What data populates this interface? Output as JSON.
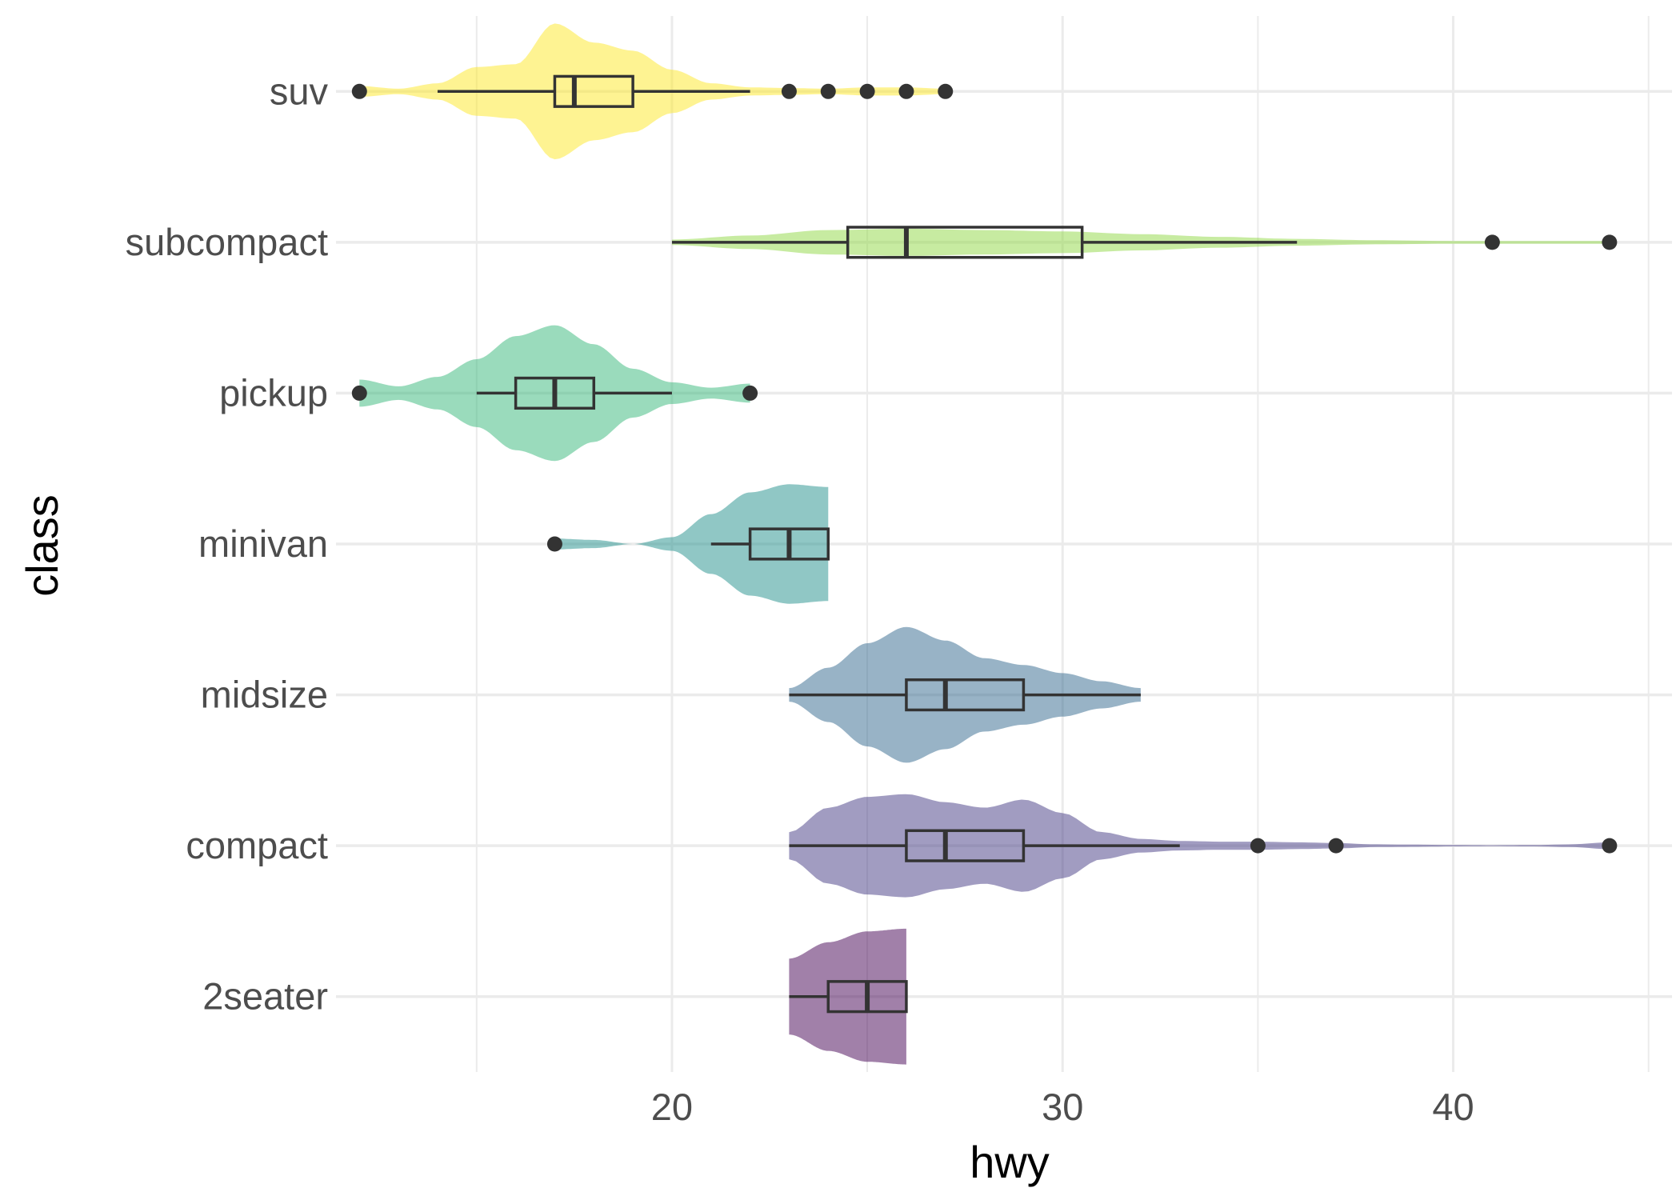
{
  "chart_data": {
    "type": "violin",
    "orientation": "horizontal",
    "xlabel": "hwy",
    "ylabel": "class",
    "xlim": [
      11.4,
      45.6
    ],
    "x_ticks": [
      20,
      30,
      40
    ],
    "x_tick_labels": [
      "20",
      "30",
      "40"
    ],
    "x_minor_ticks": [
      15,
      25,
      35,
      45
    ],
    "categories": [
      "2seater",
      "compact",
      "midsize",
      "minivan",
      "pickup",
      "subcompact",
      "suv"
    ],
    "grid": true,
    "legend": "none",
    "series": [
      {
        "category": "2seater",
        "color": "#440154",
        "alpha": 0.5,
        "box": {
          "min": 23,
          "q1": 24,
          "median": 25,
          "q3": 26,
          "max": 26
        },
        "outliers": [],
        "density": [
          [
            23,
            0.28
          ],
          [
            24,
            0.4
          ],
          [
            25,
            0.48
          ],
          [
            26,
            0.5
          ]
        ]
      },
      {
        "category": "compact",
        "color": "#443A83",
        "alpha": 0.5,
        "box": {
          "min": 23,
          "q1": 26,
          "median": 27,
          "q3": 29,
          "max": 33
        },
        "outliers": [
          35,
          37,
          44
        ],
        "density": [
          [
            23,
            0.1
          ],
          [
            24,
            0.28
          ],
          [
            25,
            0.36
          ],
          [
            26,
            0.38
          ],
          [
            27,
            0.32
          ],
          [
            28,
            0.28
          ],
          [
            29,
            0.34
          ],
          [
            30,
            0.24
          ],
          [
            31,
            0.1
          ],
          [
            32,
            0.05
          ],
          [
            33,
            0.035
          ],
          [
            34,
            0.03
          ],
          [
            35,
            0.03
          ],
          [
            36,
            0.025
          ],
          [
            37,
            0.02
          ],
          [
            38,
            0.01
          ],
          [
            39,
            0.008
          ],
          [
            40,
            0.005
          ],
          [
            41,
            0.004
          ],
          [
            42,
            0.005
          ],
          [
            43,
            0.01
          ],
          [
            44,
            0.025
          ]
        ]
      },
      {
        "category": "midsize",
        "color": "#31688E",
        "alpha": 0.5,
        "box": {
          "min": 23,
          "q1": 26,
          "median": 27,
          "q3": 29,
          "max": 32
        },
        "outliers": [],
        "density": [
          [
            23,
            0.05
          ],
          [
            24,
            0.2
          ],
          [
            25,
            0.38
          ],
          [
            26,
            0.5
          ],
          [
            27,
            0.4
          ],
          [
            28,
            0.27
          ],
          [
            29,
            0.22
          ],
          [
            30,
            0.16
          ],
          [
            31,
            0.1
          ],
          [
            32,
            0.05
          ]
        ]
      },
      {
        "category": "minivan",
        "color": "#21908C",
        "alpha": 0.5,
        "box": {
          "min": 21,
          "q1": 22,
          "median": 23,
          "q3": 24,
          "max": 24
        },
        "outliers": [
          17
        ],
        "density": [
          [
            17,
            0.04
          ],
          [
            18,
            0.03
          ],
          [
            19,
            0.0
          ],
          [
            20,
            0.05
          ],
          [
            21,
            0.22
          ],
          [
            22,
            0.38
          ],
          [
            23,
            0.44
          ],
          [
            24,
            0.42
          ]
        ]
      },
      {
        "category": "pickup",
        "color": "#35B779",
        "alpha": 0.5,
        "box": {
          "min": 15,
          "q1": 16,
          "median": 17,
          "q3": 18,
          "max": 20
        },
        "outliers": [
          12,
          22
        ],
        "density": [
          [
            12,
            0.1
          ],
          [
            13,
            0.05
          ],
          [
            14,
            0.12
          ],
          [
            15,
            0.25
          ],
          [
            16,
            0.42
          ],
          [
            17,
            0.5
          ],
          [
            18,
            0.36
          ],
          [
            19,
            0.18
          ],
          [
            20,
            0.08
          ],
          [
            21,
            0.04
          ],
          [
            22,
            0.07
          ]
        ]
      },
      {
        "category": "subcompact",
        "color": "#8FD744",
        "alpha": 0.5,
        "box": {
          "min": 20,
          "q1": 24.5,
          "median": 26,
          "q3": 30.5,
          "max": 36
        },
        "outliers": [
          41,
          44
        ],
        "density": [
          [
            20,
            0.02
          ],
          [
            22,
            0.05
          ],
          [
            24,
            0.09
          ],
          [
            26,
            0.1
          ],
          [
            28,
            0.09
          ],
          [
            30,
            0.08
          ],
          [
            32,
            0.06
          ],
          [
            34,
            0.04
          ],
          [
            36,
            0.025
          ],
          [
            38,
            0.015
          ],
          [
            40,
            0.01
          ],
          [
            42,
            0.01
          ],
          [
            44,
            0.01
          ]
        ]
      },
      {
        "category": "suv",
        "color": "#FDE725",
        "alpha": 0.5,
        "box": {
          "min": 14,
          "q1": 17,
          "median": 17.5,
          "q3": 19,
          "max": 22
        },
        "outliers": [
          12,
          23,
          24,
          25,
          26,
          27
        ],
        "density": [
          [
            12,
            0.04
          ],
          [
            13,
            0.02
          ],
          [
            14,
            0.06
          ],
          [
            15,
            0.18
          ],
          [
            16,
            0.2
          ],
          [
            17,
            0.5
          ],
          [
            18,
            0.36
          ],
          [
            19,
            0.3
          ],
          [
            20,
            0.16
          ],
          [
            21,
            0.06
          ],
          [
            22,
            0.03
          ],
          [
            23,
            0.025
          ],
          [
            24,
            0.02
          ],
          [
            25,
            0.03
          ],
          [
            26,
            0.03
          ],
          [
            27,
            0.02
          ]
        ]
      }
    ]
  }
}
